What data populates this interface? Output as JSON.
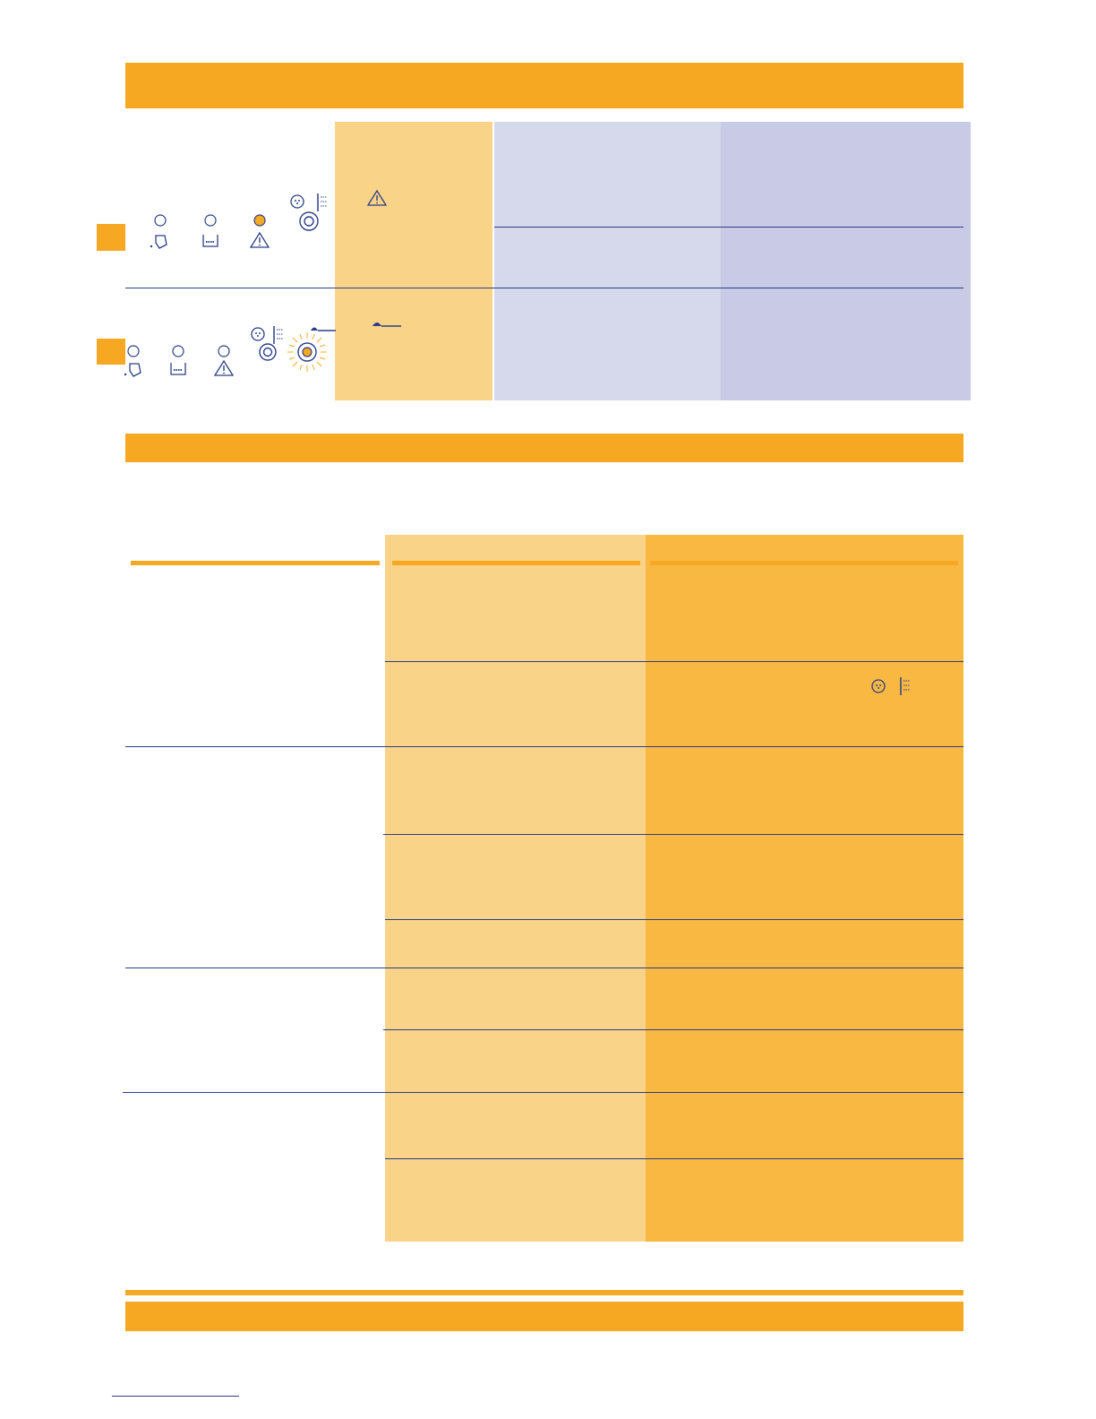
{
  "colors": {
    "band_orange": "#f7a823",
    "light_orange": "#f9d388",
    "medium_orange": "#f8b842",
    "lavender_light": "#d6d8ec",
    "lavender": "#c8cae6",
    "navy": "#2b3f86",
    "indicator_on": "#f7a823"
  },
  "indicator_panels": [
    {
      "lights": [
        "off",
        "off",
        "on"
      ],
      "lamp_icons": [
        "detergent-pour-icon",
        "filter-tray-icon",
        "warning-triangle-icon"
      ],
      "knob_icons": [
        "spin-rinse-icon",
        "water-level-icon",
        "knob-dial-icon"
      ],
      "signal_icon": "warning-triangle-icon"
    },
    {
      "lights": [
        "off",
        "off",
        "off"
      ],
      "lamp_icons": [
        "detergent-pour-icon",
        "filter-tray-icon",
        "warning-triangle-icon"
      ],
      "knob_icons": [
        "spin-rinse-icon",
        "water-level-icon",
        "knob-dial-icon",
        "knob-dial-glowing-icon",
        "measuring-spoon-icon"
      ],
      "signal_icon": "measuring-spoon-icon"
    }
  ],
  "table_icons": [
    "spin-rinse-icon",
    "water-level-icon"
  ]
}
